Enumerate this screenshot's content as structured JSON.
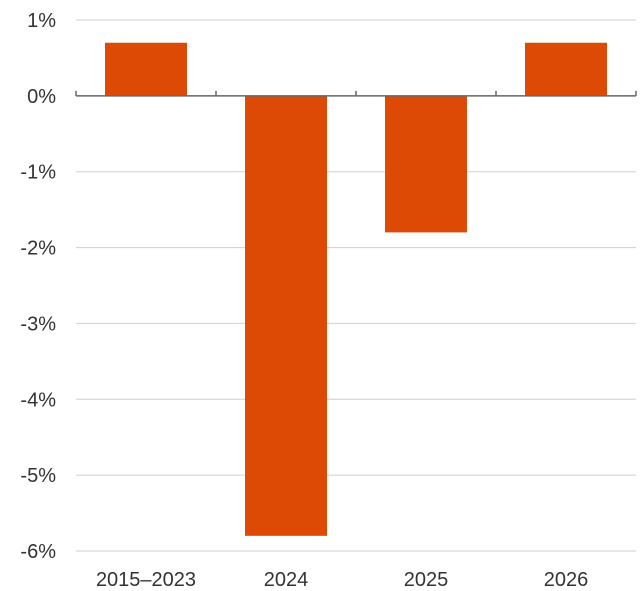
{
  "chart_data": {
    "type": "bar",
    "title": "",
    "xlabel": "",
    "ylabel": "",
    "categories": [
      "2015–2023",
      "2024",
      "2025",
      "2026"
    ],
    "values": [
      0.7,
      -5.8,
      -1.8,
      0.7
    ],
    "ylim": [
      -6,
      1
    ],
    "yticks": [
      1,
      0,
      -1,
      -2,
      -3,
      -4,
      -5,
      -6
    ],
    "ytick_labels": [
      "1%",
      "0%",
      "-1%",
      "-2%",
      "-3%",
      "-4%",
      "-5%",
      "-6%"
    ],
    "grid": true,
    "legend": "none",
    "bar_color": "#dd4a06"
  }
}
